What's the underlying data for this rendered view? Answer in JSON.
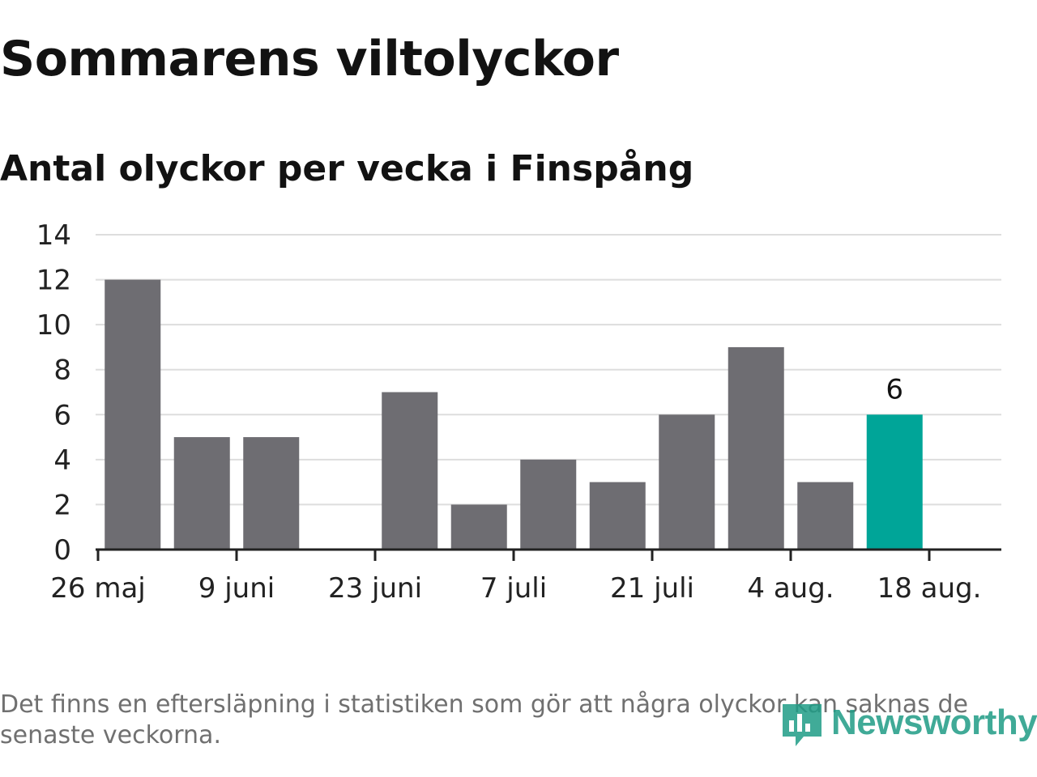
{
  "title": "Sommarens viltolyckor",
  "subtitle": "Antal olyckor per vecka i Finspång",
  "chart_data": {
    "type": "bar",
    "x": [
      "2024-06-02",
      "2024-06-09",
      "2024-06-16",
      "2024-06-23",
      "2024-06-30",
      "2024-07-07",
      "2024-07-14",
      "2024-07-21",
      "2024-07-28",
      "2024-08-04",
      "2024-08-11",
      "2024-08-18"
    ],
    "values": [
      12,
      5,
      5,
      0,
      7,
      2,
      4,
      3,
      6,
      9,
      3,
      6
    ],
    "highlight_last": true,
    "highlight_label": "6",
    "ylim": [
      0,
      14
    ],
    "yticks": [
      0,
      2,
      4,
      6,
      8,
      10,
      12,
      14
    ],
    "xticks": [
      {
        "date": "2024-05-26",
        "label": "26 maj"
      },
      {
        "date": "2024-06-09",
        "label": "9 juni"
      },
      {
        "date": "2024-06-23",
        "label": "23 juni"
      },
      {
        "date": "2024-07-07",
        "label": "7 juli"
      },
      {
        "date": "2024-07-21",
        "label": "21 juli"
      },
      {
        "date": "2024-08-04",
        "label": "4 aug."
      },
      {
        "date": "2024-08-18",
        "label": "18 aug."
      }
    ],
    "xlabel": "",
    "ylabel": "",
    "grid": true,
    "colors": {
      "bar": "#6e6d72",
      "highlight": "#00a598",
      "grid": "#dddddd",
      "axis": "#222222"
    }
  },
  "footnote": "Det finns en eftersläpning i statistiken som gör att några olyckor kan saknas de senaste veckorna.",
  "logo": {
    "text": "Newsworthy",
    "icon": "newsworthy-logo-icon",
    "color": "#1f9c86"
  }
}
